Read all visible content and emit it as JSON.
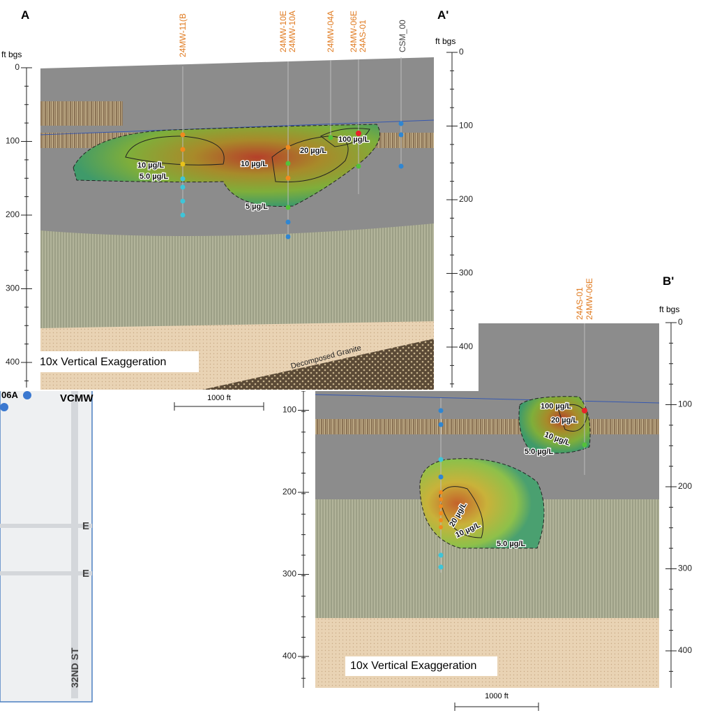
{
  "sectionA": {
    "start": "A",
    "end": "A'",
    "unit": "ft bgs",
    "left_ticks": [
      0,
      100,
      200,
      300,
      400
    ],
    "right_ticks": [
      0,
      100,
      200,
      300,
      400
    ],
    "wells": [
      "24MW-11(B",
      "24MW-10E",
      "24MW-10A",
      "24MW-04A",
      "24MW-06E",
      "24AS-01",
      "CSM_00"
    ],
    "contours": [
      "100 µg/L",
      "20 µg/L",
      "10 µg/L",
      "10 µg/L",
      "5.0 µg/L",
      "5 µg/L"
    ],
    "exaggeration": "10x Vertical Exaggeration",
    "geology": "Decomposed Granite",
    "scale": "1000 ft"
  },
  "sectionB": {
    "end": "B'",
    "unit": "ft bgs",
    "left_ticks": [
      100,
      200,
      300,
      400
    ],
    "right_ticks": [
      0,
      100,
      200,
      300,
      400
    ],
    "wells": [
      "24AS-01",
      "24MW-06E"
    ],
    "contours": [
      "100 µg/L",
      "20 µg/L",
      "10 µg/L",
      "5.0 µg/L",
      "20 µg/L",
      "10 µg/L",
      "5.0 µg/L"
    ],
    "exaggeration": "10x Vertical Exaggeration",
    "scale": "1000 ft"
  },
  "map": {
    "labels": [
      "06A",
      "VCMW",
      "E",
      "E",
      "32ND ST"
    ]
  }
}
